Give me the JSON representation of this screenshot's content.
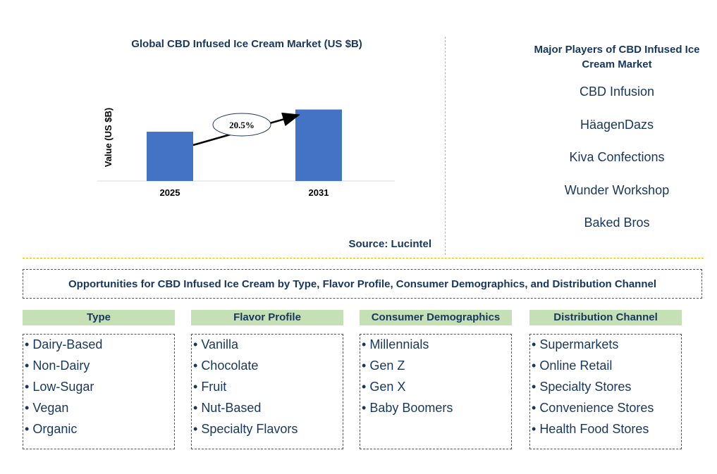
{
  "chart_data": {
    "type": "bar",
    "title": "Global CBD Infused Ice Cream Market (US $B)",
    "ylabel": "Value (US $B)",
    "categories": [
      "2025",
      "2031"
    ],
    "values": [
      1.0,
      1.45
    ],
    "ylim": [
      0,
      1.6
    ],
    "annotation": "20.5%",
    "bar_color": "#4472c4"
  },
  "source": "Source: Lucintel",
  "players": {
    "title": "Major Players of CBD Infused Ice Cream Market",
    "items": [
      "CBD Infusion",
      "HäagenDazs",
      "Kiva Confections",
      "Wunder Workshop",
      "Baked Bros"
    ]
  },
  "opportunities": {
    "title": "Opportunities for CBD Infused Ice Cream by Type, Flavor Profile, Consumer Demographics, and Distribution Channel",
    "categories": [
      {
        "header": "Type",
        "items": [
          "Dairy-Based",
          "Non-Dairy",
          "Low-Sugar",
          "Vegan",
          "Organic"
        ]
      },
      {
        "header": "Flavor Profile",
        "items": [
          "Vanilla",
          "Chocolate",
          "Fruit",
          "Nut-Based",
          "Specialty Flavors"
        ]
      },
      {
        "header": "Consumer Demographics",
        "items": [
          "Millennials",
          "Gen Z",
          "Gen X",
          "Baby Boomers"
        ]
      },
      {
        "header": "Distribution Channel",
        "items": [
          "Supermarkets",
          "Online Retail",
          "Specialty Stores",
          "Convenience Stores",
          "Health Food Stores"
        ]
      }
    ]
  },
  "colors": {
    "title_text": "#17375e",
    "divider": "#f0b400",
    "header_fill": "#c5e0b4"
  }
}
